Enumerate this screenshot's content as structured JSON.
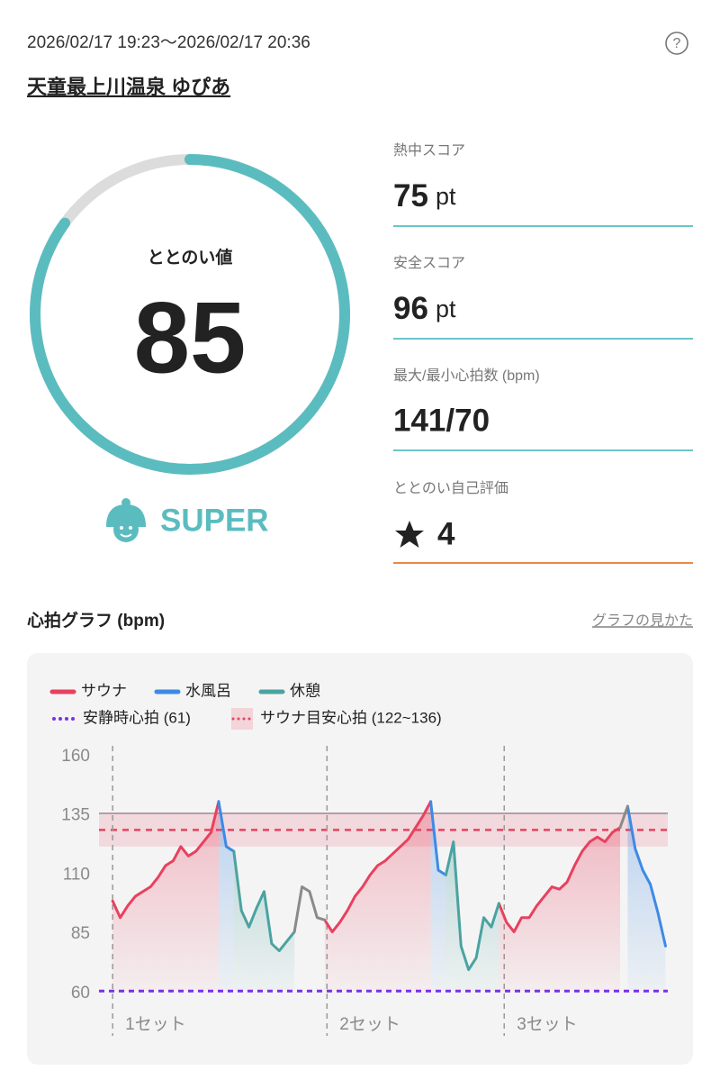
{
  "header": {
    "datetime": "2026/02/17 19:23〜2026/02/17 20:36",
    "venue": "天童最上川温泉 ゆぴあ"
  },
  "gauge": {
    "label": "ととのい値",
    "value": 85,
    "range": [
      0,
      100
    ],
    "rank": "SUPER"
  },
  "scores": [
    {
      "label": "熱中スコア",
      "value": 75,
      "unit": "pt"
    },
    {
      "label": "安全スコア",
      "value": 96,
      "unit": "pt"
    },
    {
      "label": "最大/最小心拍数 (bpm)",
      "value": "141/70"
    },
    {
      "label": "ととのい自己評価",
      "value": 4
    }
  ],
  "chart_section": {
    "title": "心拍グラフ (bpm)",
    "link": "グラフの見かた"
  },
  "chart_data": {
    "type": "line",
    "ylim": [
      53.5,
      164.5
    ],
    "yticks": [
      160,
      135,
      110,
      85,
      60
    ],
    "xlim": [
      -1.8,
      73.3
    ],
    "x": [
      0,
      1,
      2,
      3,
      4,
      5,
      6,
      7,
      8,
      9,
      10,
      11,
      12,
      13,
      14,
      15,
      16,
      17,
      18,
      19,
      20,
      21,
      22,
      23,
      24,
      25,
      26,
      27,
      28,
      29,
      30,
      31,
      32,
      33,
      34,
      35,
      36,
      37,
      38,
      39,
      40,
      41,
      42,
      43,
      44,
      45,
      46,
      47,
      48,
      49,
      50,
      51,
      52,
      53,
      54,
      55,
      56,
      57,
      58,
      59,
      60,
      61,
      62,
      63,
      64,
      65,
      66,
      67,
      68,
      69,
      70,
      71,
      72,
      73
    ],
    "series": [
      {
        "name": "サウナ",
        "color": "#e8415f",
        "values": [
          99,
          92,
          97,
          101,
          103,
          105,
          109,
          114,
          116,
          122,
          118,
          120,
          124,
          128,
          141,
          null,
          null,
          null,
          null,
          null,
          null,
          null,
          null,
          null,
          null,
          null,
          null,
          null,
          91,
          86,
          90,
          95,
          101,
          105,
          110,
          114,
          116,
          119,
          122,
          125,
          130,
          135,
          141,
          null,
          null,
          null,
          null,
          null,
          null,
          null,
          null,
          98,
          90,
          86,
          92,
          92,
          97,
          101,
          105,
          104,
          107,
          114,
          120,
          124,
          126,
          124,
          128,
          130,
          null,
          null,
          null,
          null,
          null,
          null
        ]
      },
      {
        "name": "水風呂",
        "color": "#3d8ae6",
        "values": [
          null,
          null,
          null,
          null,
          null,
          null,
          null,
          null,
          null,
          null,
          null,
          null,
          null,
          null,
          141,
          122,
          120,
          null,
          null,
          null,
          null,
          null,
          null,
          null,
          null,
          null,
          null,
          null,
          null,
          null,
          null,
          null,
          null,
          null,
          null,
          null,
          null,
          null,
          null,
          null,
          null,
          null,
          141,
          112,
          110,
          null,
          null,
          null,
          null,
          null,
          null,
          null,
          null,
          null,
          null,
          null,
          null,
          null,
          null,
          null,
          null,
          null,
          null,
          null,
          null,
          null,
          null,
          null,
          139,
          121,
          112,
          106,
          94,
          80
        ]
      },
      {
        "name": "休憩",
        "color": "#4aa3a0",
        "values": [
          null,
          null,
          null,
          null,
          null,
          null,
          null,
          null,
          null,
          null,
          null,
          null,
          null,
          null,
          null,
          null,
          120,
          95,
          88,
          96,
          103,
          81,
          78,
          82,
          86,
          null,
          null,
          null,
          null,
          null,
          null,
          null,
          null,
          null,
          null,
          null,
          null,
          null,
          null,
          null,
          null,
          null,
          null,
          null,
          110,
          124,
          80,
          70,
          75,
          92,
          88,
          98,
          null,
          null,
          null,
          null,
          null,
          null,
          null,
          null,
          null,
          null,
          null,
          null,
          null,
          null,
          null,
          null,
          null,
          null,
          null,
          null,
          null,
          null
        ]
      },
      {
        "color": "#8a8a8a",
        "values": [
          null,
          null,
          null,
          null,
          null,
          null,
          null,
          null,
          null,
          null,
          null,
          null,
          null,
          null,
          null,
          null,
          null,
          null,
          null,
          null,
          null,
          null,
          null,
          null,
          86,
          105,
          103,
          92,
          91,
          null,
          null,
          null,
          null,
          null,
          null,
          null,
          null,
          null,
          null,
          null,
          null,
          null,
          null,
          null,
          null,
          null,
          null,
          null,
          null,
          null,
          null,
          null,
          null,
          null,
          null,
          null,
          null,
          null,
          null,
          null,
          null,
          null,
          null,
          null,
          null,
          null,
          null,
          130,
          139,
          null,
          null,
          null,
          null,
          null
        ]
      }
    ],
    "resting": {
      "name": "安静時心拍 (61)",
      "value": 61,
      "color": "#7b2fe6"
    },
    "target_band": {
      "name": "サウナ目安心拍 (122~136)",
      "range": [
        122,
        136
      ],
      "color": "#e8415f"
    },
    "sets": [
      {
        "label": "1セット",
        "x": 0
      },
      {
        "label": "2セット",
        "x": 28.3
      },
      {
        "label": "3セット",
        "x": 51.7
      }
    ]
  }
}
